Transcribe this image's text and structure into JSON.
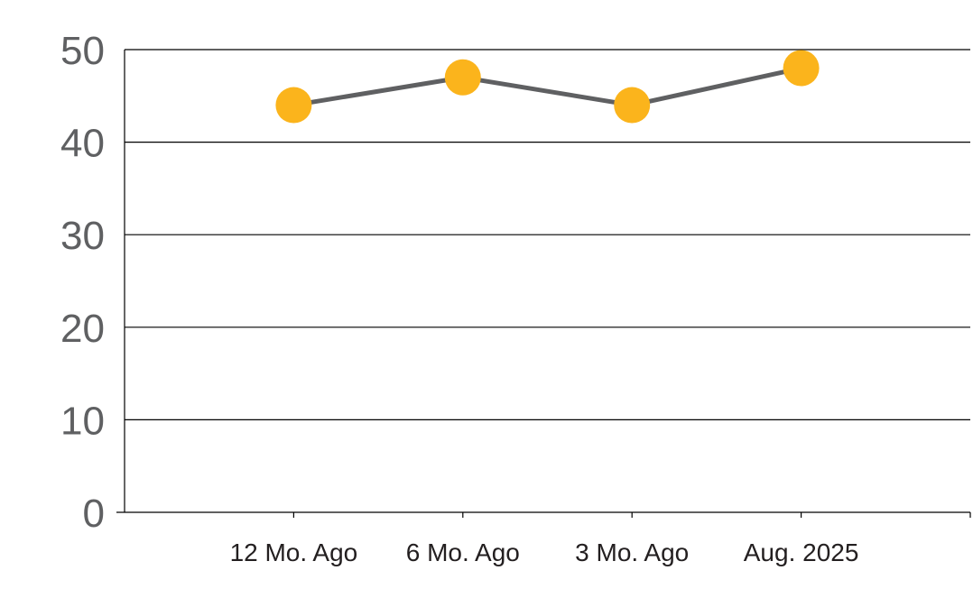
{
  "chart_data": {
    "type": "line",
    "categories": [
      "12 Mo. Ago",
      "6 Mo. Ago",
      "3 Mo. Ago",
      "Aug. 2025"
    ],
    "series": [
      {
        "values": [
          44,
          47,
          44,
          48
        ]
      }
    ],
    "y_ticks": [
      "0",
      "10",
      "20",
      "30",
      "40",
      "50"
    ],
    "ylim": [
      0,
      50
    ],
    "grid": true,
    "legend": "none",
    "colors": {
      "line": "#5f6062",
      "marker": "#fbb41c",
      "tick_text_y": "#5f6062",
      "tick_text_x": "#231f20",
      "grid": "#000000"
    }
  }
}
